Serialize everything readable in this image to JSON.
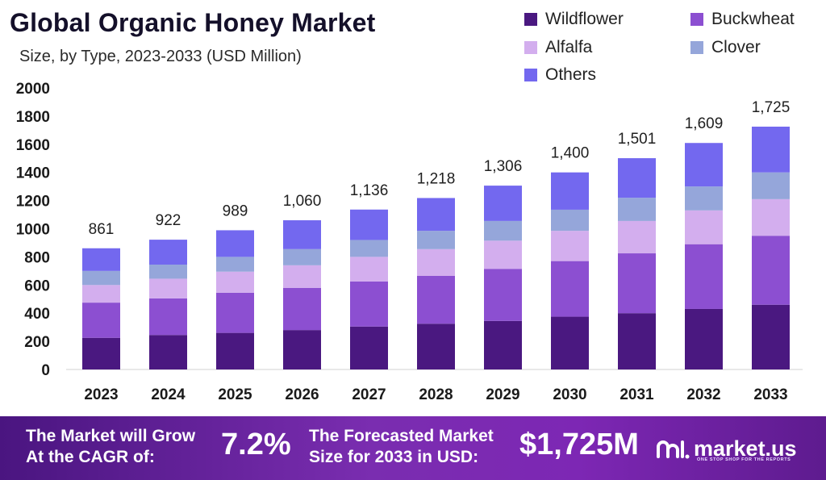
{
  "title": "Global Organic Honey Market",
  "subtitle": "Size, by Type, 2023-2033 (USD Million)",
  "colors": {
    "wildflower": "#4a1880",
    "buckwheat": "#8c4fd1",
    "alfalfa": "#d3aeee",
    "clover": "#95a6da",
    "others": "#7368ef"
  },
  "chart_data": {
    "type": "bar",
    "stacked": true,
    "categories": [
      "2023",
      "2024",
      "2025",
      "2026",
      "2027",
      "2028",
      "2029",
      "2030",
      "2031",
      "2032",
      "2033"
    ],
    "series": [
      {
        "name": "Wildflower",
        "values": [
          225,
          245,
          260,
          280,
          305,
          325,
          345,
          375,
          400,
          430,
          460
        ]
      },
      {
        "name": "Buckwheat",
        "values": [
          250,
          260,
          285,
          300,
          320,
          340,
          370,
          395,
          425,
          460,
          490
        ]
      },
      {
        "name": "Alfalfa",
        "values": [
          125,
          140,
          150,
          160,
          175,
          190,
          200,
          215,
          230,
          240,
          260
        ]
      },
      {
        "name": "Clover",
        "values": [
          100,
          100,
          105,
          115,
          120,
          130,
          140,
          150,
          165,
          170,
          190
        ]
      },
      {
        "name": "Others",
        "values": [
          161,
          177,
          189,
          205,
          216,
          233,
          251,
          265,
          281,
          309,
          325
        ]
      }
    ],
    "totals": [
      "861",
      "922",
      "989",
      "1,060",
      "1,136",
      "1,218",
      "1,306",
      "1,400",
      "1,501",
      "1,609",
      "1,725"
    ],
    "yticks": [
      "0",
      "200",
      "400",
      "600",
      "800",
      "1000",
      "1200",
      "1400",
      "1600",
      "1800",
      "2000"
    ],
    "ylim": [
      0,
      2000
    ],
    "xlabel": "",
    "ylabel": "",
    "grid": false,
    "legend_position": "top-right"
  },
  "banner": {
    "cagr_text_line1": "The Market will Grow",
    "cagr_text_line2": "At the CAGR of:",
    "cagr_value": "7.2%",
    "forecast_text_line1": "The Forecasted Market",
    "forecast_text_line2": "Size for 2033 in USD:",
    "forecast_value": "$1,725M",
    "brand_name": "market.us",
    "brand_tagline": "ONE STOP SHOP FOR THE REPORTS",
    "brand_icon": "market-us-logo-icon"
  }
}
